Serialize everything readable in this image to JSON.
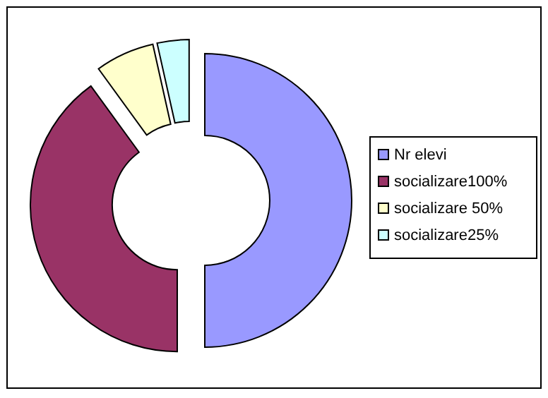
{
  "chart_data": {
    "type": "donut",
    "categories": [
      "Nr elevi",
      "socializare100%",
      "socializare 50%",
      "socializare25%"
    ],
    "values": [
      50,
      40,
      6.5,
      3.5
    ],
    "colors": [
      "#9999ff",
      "#993366",
      "#ffffcc",
      "#ccffff"
    ],
    "legend": "right"
  }
}
